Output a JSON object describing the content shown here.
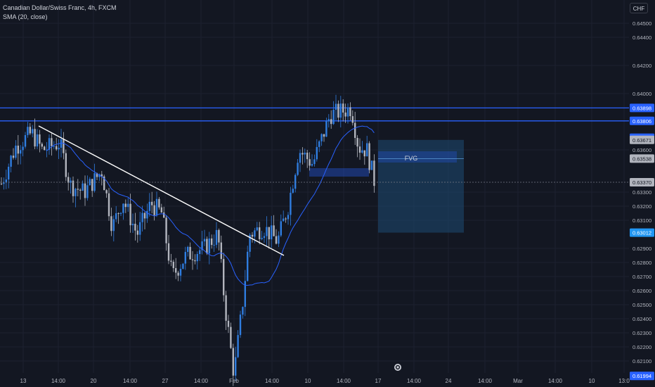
{
  "legend": {
    "symbol": "Canadian Dollar/Swiss Franc, 4h, FXCM",
    "indicator": "SMA (20, close)"
  },
  "currency_button": "CHF",
  "colors": {
    "background": "#131722",
    "up": "#2f7de0",
    "down": "#b2b5be",
    "sma": "#2962ff",
    "level_line": "#2962ff",
    "trendline": "#ffffff",
    "fvg_zone": "#2962ff",
    "target_zone": "#1e4a72"
  },
  "chart_data": {
    "type": "candlestick",
    "title": "Canadian Dollar/Swiss Franc, 4h, FXCM",
    "y_axis": {
      "range": [
        0.6193,
        0.6465
      ],
      "ticks": [
        "0.64500",
        "0.64400",
        "0.64200",
        "0.64000",
        "0.63600",
        "0.63300",
        "0.63200",
        "0.63100",
        "0.62900",
        "0.62800",
        "0.62700",
        "0.62600",
        "0.62500",
        "0.62400",
        "0.62300",
        "0.62200",
        "0.62100"
      ]
    },
    "x_axis": {
      "ticks": [
        "13",
        "14:00",
        "20",
        "14:00",
        "27",
        "14:00",
        "Feb",
        "14:00",
        "10",
        "14:00",
        "17",
        "14:00",
        "24",
        "14:00",
        "Mar",
        "14:00",
        "10",
        "13:0"
      ]
    },
    "horizontal_levels": [
      0.63898,
      0.63806
    ],
    "price_labels": [
      {
        "text": "0.63898",
        "value": 0.63898,
        "color": "#2962ff"
      },
      {
        "text": "0.63806",
        "value": 0.63806,
        "color": "#2962ff"
      },
      {
        "text": "0.63686",
        "value": 0.63686,
        "color": "#2962ff"
      },
      {
        "text": "0.63671",
        "value": 0.63671,
        "color": "#b2b5be"
      },
      {
        "text": "0.63538",
        "value": 0.63538,
        "color": "#b2b5be"
      },
      {
        "text": "0.63370",
        "value": 0.6337,
        "color": "#b2b5be"
      },
      {
        "text": "0.63012",
        "value": 0.63012,
        "color": "#2196f3"
      },
      {
        "text": "0.61994",
        "value": 0.61994,
        "color": "#2962ff"
      }
    ],
    "last_price": 0.6337,
    "annotations": [
      {
        "label": "FVG",
        "top": 0.6358,
        "bottom": 0.6352,
        "extent": "0.63671 to 0.63012 projected zone"
      }
    ],
    "trendline": {
      "start_price": 0.6377,
      "end_price": 0.6285
    }
  }
}
